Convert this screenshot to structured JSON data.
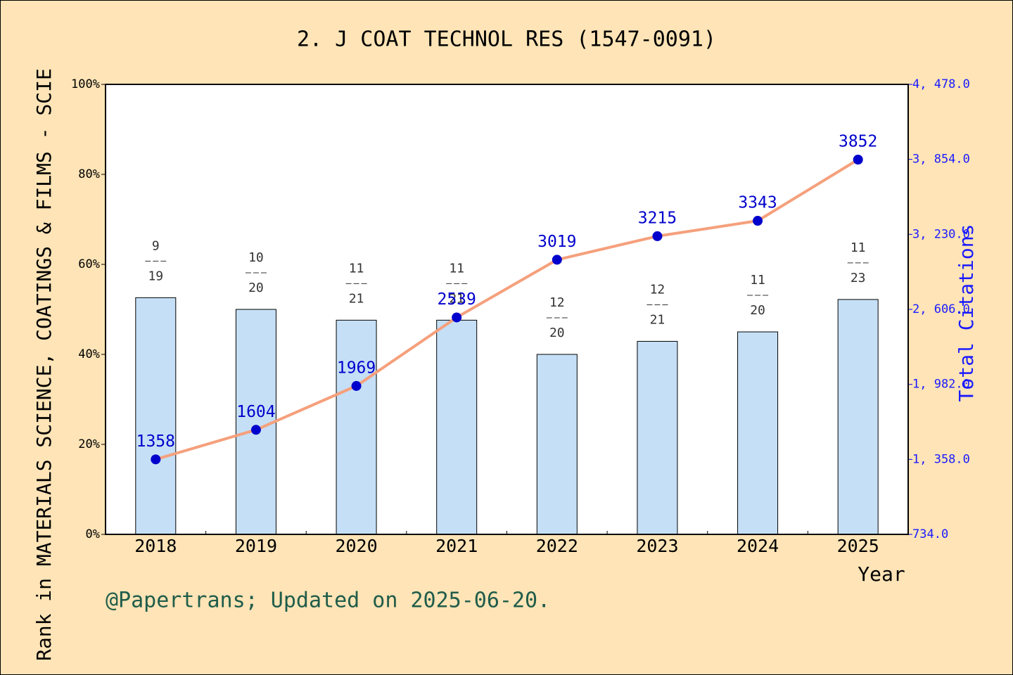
{
  "chart_data": {
    "type": "bar",
    "title": "2. J COAT TECHNOL RES (1547-0091)",
    "xlabel": "Year",
    "ylabel": "Rank in MATERIALS SCIENCE, COATINGS & FILMS - SCIE",
    "y2label": "Total Citations",
    "note": "@Papertrans; Updated on 2025-06-20.",
    "categories": [
      "2018",
      "2019",
      "2020",
      "2021",
      "2022",
      "2023",
      "2024",
      "2025"
    ],
    "series": [
      {
        "type": "bar",
        "color": "#c5dff6",
        "values": [
          52.6,
          50,
          47.6,
          47.6,
          40,
          42.9,
          45,
          52.2
        ],
        "rank": [
          9,
          10,
          11,
          11,
          12,
          12,
          11,
          11
        ],
        "total": [
          19,
          20,
          21,
          21,
          20,
          21,
          20,
          23
        ]
      },
      {
        "type": "line",
        "axis": "y2",
        "color": "#f5a07c",
        "marker_color": "#0000cc",
        "values": [
          1358,
          1604,
          1969,
          2539,
          3019,
          3215,
          3343,
          3852
        ]
      }
    ],
    "ylim": [
      0,
      100
    ],
    "yticks": [
      {
        "value": 0,
        "label": "0%"
      },
      {
        "value": 20,
        "label": "20%"
      },
      {
        "value": 40,
        "label": "40%"
      },
      {
        "value": 60,
        "label": "60%"
      },
      {
        "value": 80,
        "label": "80%"
      },
      {
        "value": 100,
        "label": "100%"
      }
    ],
    "y2lim": [
      734,
      4478
    ],
    "y2ticks": [
      {
        "value": 734,
        "label": "734.0"
      },
      {
        "value": 1358,
        "label": "1, 358.0"
      },
      {
        "value": 1982,
        "label": "1, 982.0"
      },
      {
        "value": 2606,
        "label": "2, 606.0"
      },
      {
        "value": 3230,
        "label": "3, 230.0"
      },
      {
        "value": 3854,
        "label": "3, 854.0"
      },
      {
        "value": 4478,
        "label": "4, 478.0"
      }
    ]
  }
}
